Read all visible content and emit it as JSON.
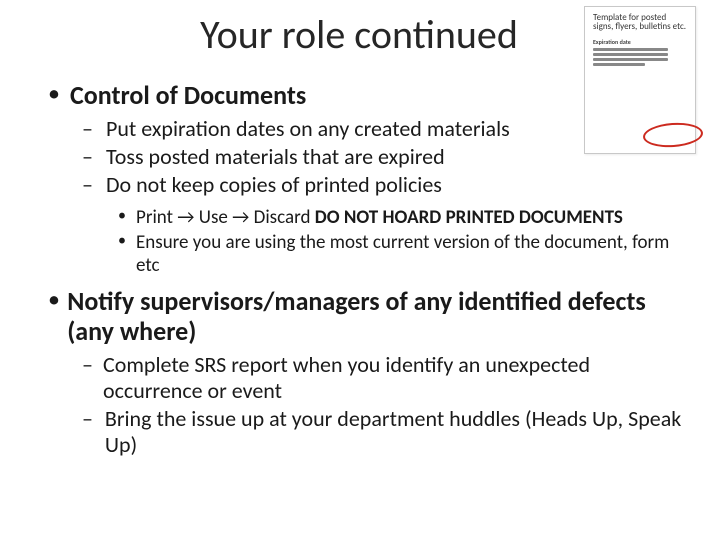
{
  "title": "Your role continued",
  "thumbnail": {
    "title": "Template for posted signs, flyers, bulletins etc.",
    "section_label": "Expiration date"
  },
  "colors": {
    "text": "#1a1a1a",
    "ellipse": "#cc2a1f",
    "thumb_border": "#c8c8c8",
    "background": "#ffffff"
  },
  "items": [
    {
      "text": "Control of Documents",
      "sub": [
        {
          "text": "Put expiration dates on any created materials"
        },
        {
          "text": "Toss posted materials that are expired"
        },
        {
          "text": "Do not keep copies of printed policies",
          "sub": [
            {
              "prefix": "Print → Use → Discard   ",
              "bold": "DO NOT HOARD PRINTED DOCUMENTS"
            },
            {
              "text": "Ensure you are using the most current version of the document, form etc"
            }
          ]
        }
      ]
    },
    {
      "text": "Notify supervisors/managers of any identified defects (any where)",
      "sub": [
        {
          "text": "Complete SRS report when you identify an unexpected occurrence or event"
        },
        {
          "text": "Bring the issue up at your department huddles (Heads Up, Speak Up)"
        }
      ]
    }
  ]
}
